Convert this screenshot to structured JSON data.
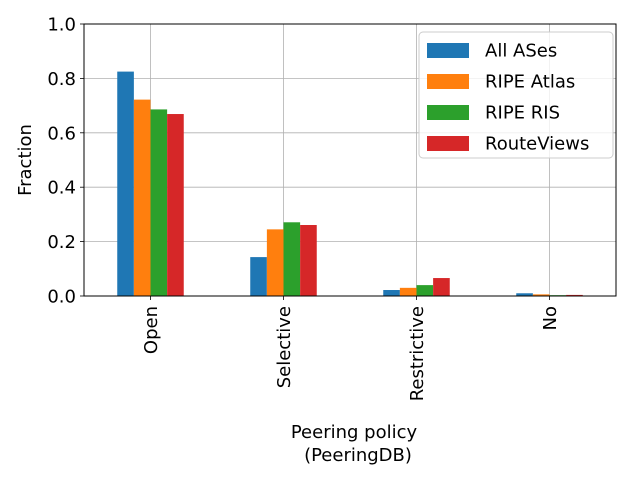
{
  "chart_data": {
    "type": "bar",
    "categories": [
      "Open",
      "Selective",
      "Restrictive",
      "No"
    ],
    "series": [
      {
        "name": "All ASes",
        "color": "#1f77b4",
        "values": [
          0.825,
          0.143,
          0.022,
          0.01
        ]
      },
      {
        "name": "RIPE Atlas",
        "color": "#ff7f0e",
        "values": [
          0.722,
          0.245,
          0.03,
          0.006
        ]
      },
      {
        "name": "RIPE RIS",
        "color": "#2ca02c",
        "values": [
          0.686,
          0.271,
          0.04,
          0.003
        ]
      },
      {
        "name": "RouteViews",
        "color": "#d62728",
        "values": [
          0.669,
          0.261,
          0.066,
          0.004
        ]
      }
    ],
    "xlabel": [
      "Peering policy",
      "(PeeringDB)"
    ],
    "ylabel": "Fraction",
    "ylim": [
      0,
      1.0
    ],
    "yticks": [
      "0.0",
      "0.2",
      "0.4",
      "0.6",
      "0.8",
      "1.0"
    ],
    "grid": true,
    "legend_position": "top-right"
  }
}
